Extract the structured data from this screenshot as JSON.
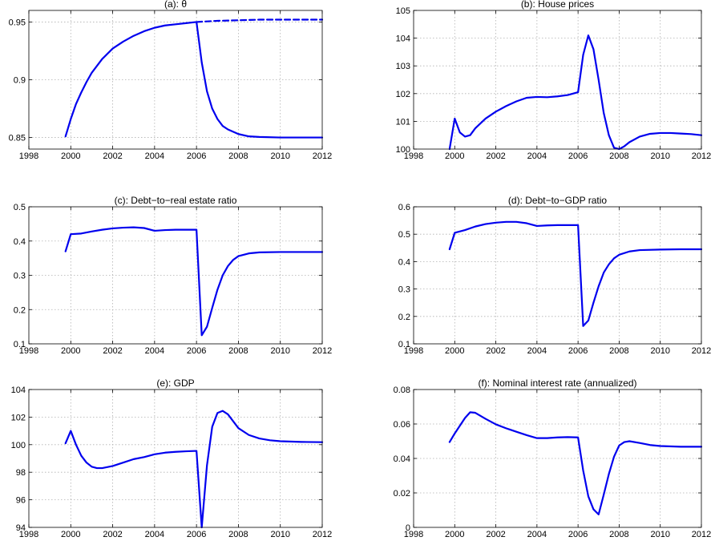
{
  "chart_data": [
    {
      "type": "line",
      "title": "(a): θ",
      "xlim": [
        1998,
        2012
      ],
      "ylim": [
        0.84,
        0.96
      ],
      "xticks": [
        "1998",
        "2000",
        "2002",
        "2004",
        "2006",
        "2008",
        "2010",
        "2012"
      ],
      "yticks": [
        "0.85",
        "0.9",
        "0.95"
      ],
      "ytick_values": [
        0.85,
        0.9,
        0.95
      ],
      "grid": true,
      "color": "#0000ee",
      "series": [
        {
          "style": "solid",
          "x": [
            1999.75,
            2000,
            2000.25,
            2000.5,
            2000.75,
            2001,
            2001.5,
            2002,
            2002.5,
            2003,
            2003.5,
            2004,
            2004.5,
            2005,
            2005.5,
            2006,
            2006.25,
            2006.5,
            2006.75,
            2007,
            2007.25,
            2007.5,
            2008,
            2008.5,
            2009,
            2010,
            2011,
            2012
          ],
          "y": [
            0.851,
            0.866,
            0.879,
            0.889,
            0.898,
            0.906,
            0.918,
            0.927,
            0.933,
            0.938,
            0.942,
            0.945,
            0.947,
            0.948,
            0.949,
            0.95,
            0.915,
            0.89,
            0.875,
            0.866,
            0.86,
            0.857,
            0.853,
            0.851,
            0.8505,
            0.85,
            0.85,
            0.85
          ]
        },
        {
          "style": "dashed",
          "x": [
            2006,
            2007,
            2008,
            2009,
            2010,
            2011,
            2012
          ],
          "y": [
            0.95,
            0.951,
            0.9515,
            0.952,
            0.952,
            0.952,
            0.952
          ]
        }
      ]
    },
    {
      "type": "line",
      "title": "(b): House prices",
      "xlim": [
        1998,
        2012
      ],
      "ylim": [
        100,
        105
      ],
      "xticks": [
        "1998",
        "2000",
        "2002",
        "2004",
        "2006",
        "2008",
        "2010",
        "2012"
      ],
      "yticks": [
        "100",
        "101",
        "102",
        "103",
        "104",
        "105"
      ],
      "ytick_values": [
        100,
        101,
        102,
        103,
        104,
        105
      ],
      "grid": true,
      "color": "#0000ee",
      "series": [
        {
          "style": "solid",
          "x": [
            1999.75,
            2000,
            2000.25,
            2000.5,
            2000.75,
            2001,
            2001.5,
            2002,
            2002.5,
            2003,
            2003.5,
            2004,
            2004.5,
            2005,
            2005.5,
            2006,
            2006.25,
            2006.5,
            2006.75,
            2007,
            2007.25,
            2007.5,
            2007.75,
            2008,
            2008.25,
            2008.5,
            2009,
            2009.5,
            2010,
            2010.5,
            2011,
            2011.5,
            2012
          ],
          "y": [
            100.0,
            101.1,
            100.6,
            100.45,
            100.5,
            100.75,
            101.1,
            101.35,
            101.55,
            101.72,
            101.85,
            101.88,
            101.87,
            101.9,
            101.95,
            102.05,
            103.4,
            104.1,
            103.6,
            102.5,
            101.3,
            100.5,
            100.05,
            100.0,
            100.1,
            100.25,
            100.45,
            100.55,
            100.58,
            100.58,
            100.56,
            100.54,
            100.5
          ]
        }
      ]
    },
    {
      "type": "line",
      "title": "(c): Debt−to−real estate ratio",
      "xlim": [
        1998,
        2012
      ],
      "ylim": [
        0.1,
        0.5
      ],
      "xticks": [
        "1998",
        "2000",
        "2002",
        "2004",
        "2006",
        "2008",
        "2010",
        "2012"
      ],
      "yticks": [
        "0.1",
        "0.2",
        "0.3",
        "0.4",
        "0.5"
      ],
      "ytick_values": [
        0.1,
        0.2,
        0.3,
        0.4,
        0.5
      ],
      "grid": true,
      "color": "#0000ee",
      "series": [
        {
          "style": "solid",
          "x": [
            1999.75,
            2000,
            2000.5,
            2001,
            2001.5,
            2002,
            2002.5,
            2003,
            2003.5,
            2004,
            2004.5,
            2005,
            2005.5,
            2006,
            2006.25,
            2006.5,
            2006.75,
            2007,
            2007.25,
            2007.5,
            2007.75,
            2008,
            2008.5,
            2009,
            2010,
            2011,
            2012
          ],
          "y": [
            0.37,
            0.42,
            0.422,
            0.428,
            0.433,
            0.437,
            0.439,
            0.44,
            0.438,
            0.43,
            0.432,
            0.433,
            0.433,
            0.433,
            0.125,
            0.15,
            0.205,
            0.258,
            0.3,
            0.327,
            0.345,
            0.356,
            0.364,
            0.367,
            0.368,
            0.368,
            0.368
          ]
        }
      ]
    },
    {
      "type": "line",
      "title": "(d): Debt−to−GDP ratio",
      "xlim": [
        1998,
        2012
      ],
      "ylim": [
        0.1,
        0.6
      ],
      "xticks": [
        "1998",
        "2000",
        "2002",
        "2004",
        "2006",
        "2008",
        "2010",
        "2012"
      ],
      "yticks": [
        "0.1",
        "0.2",
        "0.3",
        "0.4",
        "0.5",
        "0.6"
      ],
      "ytick_values": [
        0.1,
        0.2,
        0.3,
        0.4,
        0.5,
        0.6
      ],
      "grid": true,
      "color": "#0000ee",
      "series": [
        {
          "style": "solid",
          "x": [
            1999.75,
            2000,
            2000.5,
            2001,
            2001.5,
            2002,
            2002.5,
            2003,
            2003.5,
            2004,
            2004.5,
            2005,
            2005.5,
            2006,
            2006.25,
            2006.5,
            2006.75,
            2007,
            2007.25,
            2007.5,
            2007.75,
            2008,
            2008.5,
            2009,
            2010,
            2011,
            2012
          ],
          "y": [
            0.445,
            0.505,
            0.515,
            0.528,
            0.537,
            0.542,
            0.545,
            0.545,
            0.54,
            0.53,
            0.532,
            0.533,
            0.533,
            0.533,
            0.165,
            0.185,
            0.25,
            0.31,
            0.36,
            0.39,
            0.412,
            0.425,
            0.437,
            0.442,
            0.444,
            0.445,
            0.445
          ]
        }
      ]
    },
    {
      "type": "line",
      "title": "(e): GDP",
      "xlim": [
        1998,
        2012
      ],
      "ylim": [
        94,
        104
      ],
      "xticks": [
        "1998",
        "2000",
        "2002",
        "2004",
        "2006",
        "2008",
        "2010",
        "2012"
      ],
      "yticks": [
        "94",
        "96",
        "98",
        "100",
        "102",
        "104"
      ],
      "ytick_values": [
        94,
        96,
        98,
        100,
        102,
        104
      ],
      "grid": true,
      "color": "#0000ee",
      "series": [
        {
          "style": "solid",
          "x": [
            1999.75,
            2000,
            2000.25,
            2000.5,
            2000.75,
            2001,
            2001.25,
            2001.5,
            2002,
            2002.5,
            2003,
            2003.5,
            2004,
            2004.5,
            2005,
            2005.5,
            2006,
            2006.25,
            2006.5,
            2006.75,
            2007,
            2007.25,
            2007.5,
            2007.75,
            2008,
            2008.5,
            2009,
            2009.5,
            2010,
            2011,
            2012
          ],
          "y": [
            100.1,
            101.0,
            100.0,
            99.2,
            98.7,
            98.4,
            98.3,
            98.3,
            98.45,
            98.7,
            98.95,
            99.1,
            99.3,
            99.42,
            99.48,
            99.52,
            99.55,
            94.0,
            98.5,
            101.3,
            102.3,
            102.45,
            102.2,
            101.7,
            101.2,
            100.7,
            100.45,
            100.32,
            100.25,
            100.2,
            100.18
          ]
        }
      ]
    },
    {
      "type": "line",
      "title": "(f): Nominal interest rate (annualized)",
      "xlim": [
        1998,
        2012
      ],
      "ylim": [
        0,
        0.08
      ],
      "xticks": [
        "1998",
        "2000",
        "2002",
        "2004",
        "2006",
        "2008",
        "2010",
        "2012"
      ],
      "yticks": [
        "0",
        "0.02",
        "0.04",
        "0.06",
        "0.08"
      ],
      "ytick_values": [
        0,
        0.02,
        0.04,
        0.06,
        0.08
      ],
      "grid": true,
      "color": "#0000ee",
      "series": [
        {
          "style": "solid",
          "x": [
            1999.75,
            2000,
            2000.5,
            2000.75,
            2001,
            2001.5,
            2002,
            2002.5,
            2003,
            2003.5,
            2004,
            2004.5,
            2005,
            2005.5,
            2006,
            2006.25,
            2006.5,
            2006.75,
            2007,
            2007.25,
            2007.5,
            2007.75,
            2008,
            2008.25,
            2008.5,
            2009,
            2009.5,
            2010,
            2011,
            2012
          ],
          "y": [
            0.0495,
            0.0545,
            0.0635,
            0.0668,
            0.0665,
            0.063,
            0.0598,
            0.0575,
            0.0555,
            0.0535,
            0.0518,
            0.0518,
            0.0522,
            0.0524,
            0.0522,
            0.033,
            0.018,
            0.0105,
            0.0075,
            0.019,
            0.031,
            0.041,
            0.0475,
            0.0495,
            0.05,
            0.049,
            0.0478,
            0.0472,
            0.0468,
            0.0468
          ]
        }
      ]
    }
  ]
}
